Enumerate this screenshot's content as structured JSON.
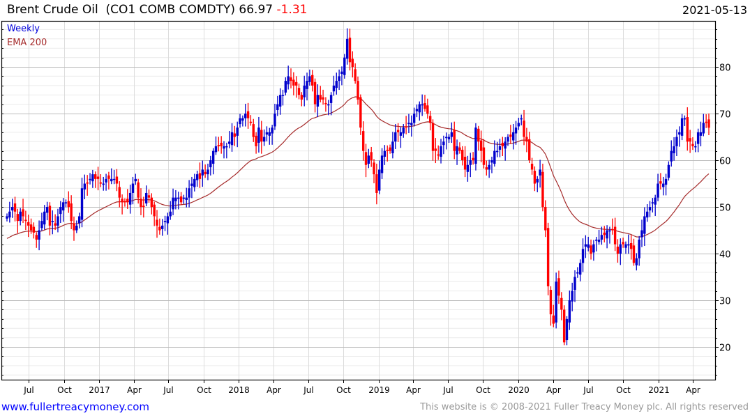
{
  "header": {
    "name": "Brent Crude Oil",
    "ticker": "(CO1 COMB COMDTY)",
    "last": "66.97",
    "change": "-1.31",
    "date": "2021-05-13"
  },
  "footer": {
    "link": "www.fullertreacymoney.com",
    "copyright": "This website is © 2008-2021 Fuller Treacy Money plc. All rights reserved"
  },
  "chart_data": {
    "type": "candlestick",
    "title": "Brent Crude Oil (CO1 COMB COMDTY)",
    "frequency": "Weekly",
    "end_date": "2021-05-13",
    "legend": [
      {
        "label": "Weekly",
        "color": "#0000dd"
      },
      {
        "label": "EMA 200",
        "color": "#a52a2a"
      }
    ],
    "legend_position": "top-left",
    "colors": {
      "up": "#0000cc",
      "down": "#ff0000",
      "ema": "#a52a2a"
    },
    "ylim": [
      13,
      89.85
    ],
    "y_ticks": [
      20,
      30,
      40,
      50,
      60,
      70,
      80
    ],
    "x_ticks": [
      {
        "label": "Jul",
        "date": "2016-07-01"
      },
      {
        "label": "Oct",
        "date": "2016-10-01"
      },
      {
        "label": "2017",
        "date": "2017-01-01"
      },
      {
        "label": "Apr",
        "date": "2017-04-01"
      },
      {
        "label": "Jul",
        "date": "2017-07-01"
      },
      {
        "label": "Oct",
        "date": "2017-10-01"
      },
      {
        "label": "2018",
        "date": "2018-01-01"
      },
      {
        "label": "Apr",
        "date": "2018-04-01"
      },
      {
        "label": "Jul",
        "date": "2018-07-01"
      },
      {
        "label": "Oct",
        "date": "2018-10-01"
      },
      {
        "label": "2019",
        "date": "2019-01-01"
      },
      {
        "label": "Apr",
        "date": "2019-04-01"
      },
      {
        "label": "Jul",
        "date": "2019-07-01"
      },
      {
        "label": "Oct",
        "date": "2019-10-01"
      },
      {
        "label": "2020",
        "date": "2020-01-01"
      },
      {
        "label": "Apr",
        "date": "2020-04-01"
      },
      {
        "label": "Jul",
        "date": "2020-07-01"
      },
      {
        "label": "Oct",
        "date": "2020-10-01"
      },
      {
        "label": "2021",
        "date": "2021-01-01"
      },
      {
        "label": "Apr",
        "date": "2021-04-01"
      }
    ],
    "ema_start": 43,
    "ema_weeks_equiv": 40,
    "weekly_close": [
      48,
      49,
      50,
      49,
      47,
      49,
      48,
      47,
      46,
      45,
      44.5,
      43,
      45,
      47,
      49,
      50,
      46,
      47,
      46,
      48,
      50,
      51,
      51,
      50,
      47,
      45,
      46,
      48,
      54,
      55,
      55,
      56,
      57,
      56,
      56,
      55,
      55,
      56,
      56,
      56,
      56,
      55,
      52,
      51,
      51,
      51,
      53,
      55,
      56,
      52,
      50,
      50,
      53,
      52,
      50,
      48,
      46,
      45,
      46,
      47,
      48,
      49,
      52,
      52,
      52,
      51,
      52,
      52,
      54,
      55,
      56,
      57,
      56,
      58,
      57,
      58,
      60,
      62,
      63,
      63,
      63,
      63,
      63,
      64,
      66,
      65,
      67,
      69,
      69,
      70,
      69,
      68,
      65,
      63,
      67,
      64,
      65,
      66,
      66,
      67,
      70,
      72,
      74,
      74,
      77,
      78,
      77,
      76,
      76,
      74,
      73,
      76,
      77,
      78,
      76,
      72,
      74,
      73,
      73,
      72,
      72,
      74,
      76,
      77,
      78,
      79,
      82,
      86,
      81,
      80,
      77,
      73,
      67,
      62,
      59,
      61,
      60,
      57,
      53,
      58,
      61,
      62,
      62,
      62,
      64,
      66,
      66,
      66,
      67,
      67,
      68,
      68,
      70,
      71,
      72,
      72,
      71,
      70,
      68,
      62,
      62,
      61,
      63,
      64,
      65,
      65,
      66,
      62,
      63,
      62,
      60,
      58,
      59,
      60,
      60,
      67,
      64,
      62,
      59,
      58,
      59,
      60,
      62,
      62,
      63,
      63,
      64,
      65,
      65,
      66,
      67,
      68,
      69,
      65,
      64,
      60,
      58,
      55,
      56,
      58,
      50,
      45,
      33,
      27,
      25,
      34,
      31,
      28,
      21,
      26,
      30,
      32,
      35,
      36,
      38,
      41,
      42,
      42,
      40,
      42,
      43,
      43,
      44,
      44,
      45,
      45,
      45,
      42,
      40,
      42,
      42,
      42,
      42,
      41,
      38,
      39,
      43,
      45,
      48,
      49,
      50,
      51,
      52,
      55,
      55,
      55,
      56,
      59,
      62,
      63,
      65,
      66,
      69,
      69,
      64,
      64,
      63,
      63,
      66,
      66,
      68,
      68,
      66.97
    ]
  }
}
